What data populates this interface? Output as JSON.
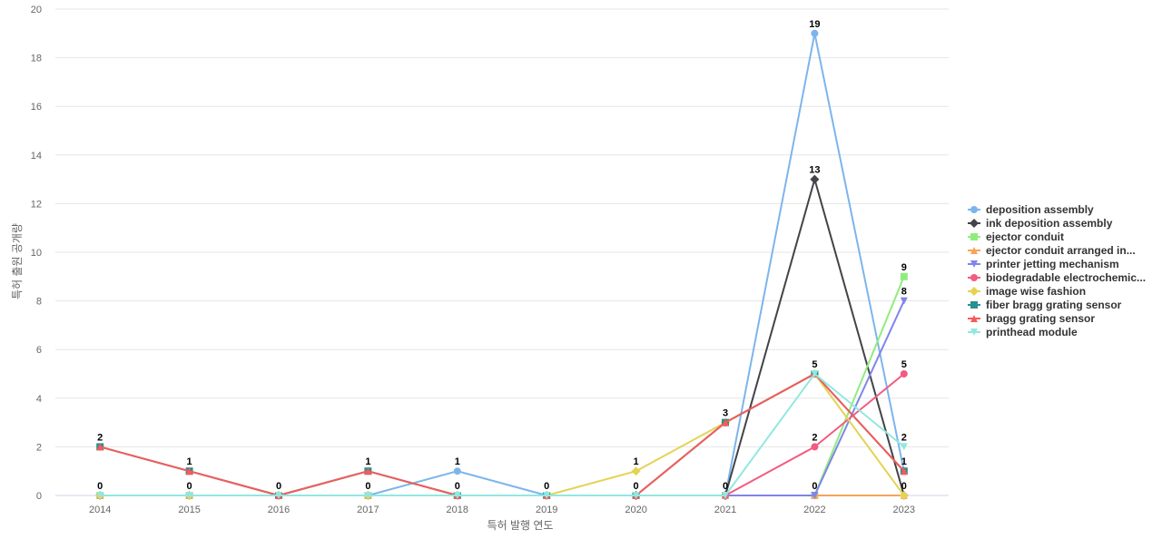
{
  "chart_data": {
    "type": "line",
    "title": "",
    "xlabel": "특허 발행 연도",
    "ylabel": "특허 출원 공개량",
    "x": [
      "2014",
      "2015",
      "2016",
      "2017",
      "2018",
      "2019",
      "2020",
      "2021",
      "2022",
      "2023"
    ],
    "ylim": [
      0,
      20
    ],
    "yticks": [
      0,
      2,
      4,
      6,
      8,
      10,
      12,
      14,
      16,
      18,
      20
    ],
    "grid": "horizontal",
    "legend": "right",
    "series": [
      {
        "name": "deposition assembly",
        "color": "#7cb5ec",
        "marker": "circle",
        "values": [
          0,
          0,
          0,
          0,
          1,
          0,
          0,
          0,
          19,
          1
        ]
      },
      {
        "name": "ink deposition assembly",
        "color": "#434348",
        "marker": "diamond",
        "values": [
          0,
          0,
          0,
          0,
          0,
          0,
          0,
          0,
          13,
          0
        ]
      },
      {
        "name": "ejector conduit",
        "color": "#90ed7d",
        "marker": "square",
        "values": [
          0,
          0,
          0,
          0,
          0,
          0,
          0,
          0,
          0,
          9
        ]
      },
      {
        "name": "ejector conduit arranged in...",
        "color": "#f7a35c",
        "marker": "triangle",
        "values": [
          0,
          0,
          0,
          0,
          0,
          0,
          0,
          0,
          0,
          0
        ]
      },
      {
        "name": "printer jetting mechanism",
        "color": "#8085e9",
        "marker": "triangle-down",
        "values": [
          0,
          0,
          0,
          0,
          0,
          0,
          0,
          0,
          0,
          8
        ]
      },
      {
        "name": "biodegradable electrochemic...",
        "color": "#f15c80",
        "marker": "circle",
        "values": [
          0,
          0,
          0,
          0,
          0,
          0,
          0,
          0,
          2,
          5
        ]
      },
      {
        "name": "image wise fashion",
        "color": "#e4d354",
        "marker": "diamond",
        "values": [
          0,
          0,
          0,
          0,
          0,
          0,
          1,
          3,
          5,
          0
        ]
      },
      {
        "name": "fiber bragg grating sensor",
        "color": "#2b908f",
        "marker": "square",
        "values": [
          2,
          1,
          0,
          1,
          0,
          0,
          0,
          3,
          5,
          1
        ]
      },
      {
        "name": "bragg grating sensor",
        "color": "#f45b5b",
        "marker": "triangle",
        "values": [
          2,
          1,
          0,
          1,
          0,
          0,
          0,
          3,
          5,
          1
        ]
      },
      {
        "name": "printhead module",
        "color": "#91e8e1",
        "marker": "triangle-down",
        "values": [
          0,
          0,
          0,
          0,
          0,
          0,
          0,
          0,
          5,
          2
        ]
      }
    ],
    "data_labels": [
      {
        "x": "2014",
        "text": "2"
      },
      {
        "x": "2014",
        "text": "0"
      },
      {
        "x": "2015",
        "text": "1"
      },
      {
        "x": "2015",
        "text": "0"
      },
      {
        "x": "2016",
        "text": "0"
      },
      {
        "x": "2017",
        "text": "1"
      },
      {
        "x": "2017",
        "text": "0"
      },
      {
        "x": "2018",
        "text": "1"
      },
      {
        "x": "2018",
        "text": "0"
      },
      {
        "x": "2019",
        "text": "0"
      },
      {
        "x": "2020",
        "text": "1"
      },
      {
        "x": "2020",
        "text": "0"
      },
      {
        "x": "2021",
        "text": "3"
      },
      {
        "x": "2021",
        "text": "0"
      },
      {
        "x": "2022",
        "text": "19"
      },
      {
        "x": "2022",
        "text": "13"
      },
      {
        "x": "2022",
        "text": "5"
      },
      {
        "x": "2022",
        "text": "2"
      },
      {
        "x": "2022",
        "text": "0"
      },
      {
        "x": "2023",
        "text": "9"
      },
      {
        "x": "2023",
        "text": "8"
      },
      {
        "x": "2023",
        "text": "5"
      },
      {
        "x": "2023",
        "text": "2"
      },
      {
        "x": "2023",
        "text": "1"
      },
      {
        "x": "2023",
        "text": "0"
      }
    ]
  }
}
